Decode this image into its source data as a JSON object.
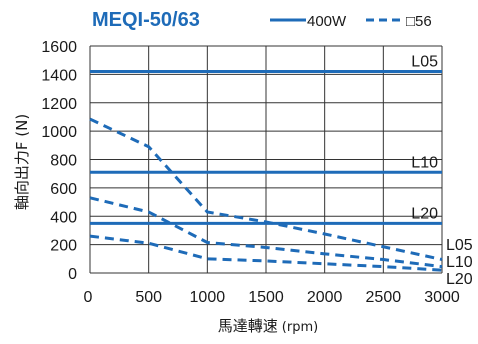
{
  "chart_data": {
    "type": "line",
    "title": "MEQI-50/63",
    "xlabel": "馬達轉速",
    "xlabel_unit": "(rpm)",
    "ylabel": "軸向出力F (N)",
    "xlim": [
      0,
      3000
    ],
    "ylim": [
      0,
      1600
    ],
    "xticks": [
      "0",
      "500",
      "1000",
      "1500",
      "2000",
      "2500",
      "3000"
    ],
    "yticks": [
      "0",
      "200",
      "400",
      "600",
      "800",
      "1000",
      "1200",
      "1400",
      "1600"
    ],
    "grid": true,
    "legend": {
      "position": "top-right",
      "entries": [
        {
          "label": "400W",
          "style": "solid"
        },
        {
          "label": "□56",
          "style": "dashed"
        }
      ]
    },
    "colors": {
      "series": "#1e6bb8",
      "grid": "#333333"
    },
    "series": [
      {
        "style": "solid",
        "right_label": "L05",
        "points": [
          [
            0,
            1420
          ],
          [
            3000,
            1420
          ]
        ]
      },
      {
        "style": "solid",
        "right_label": "L10",
        "points": [
          [
            0,
            710
          ],
          [
            3000,
            710
          ]
        ]
      },
      {
        "style": "solid",
        "right_label": "L20",
        "points": [
          [
            0,
            350
          ],
          [
            3000,
            350
          ]
        ]
      },
      {
        "style": "dashed",
        "right_label": "L05",
        "points": [
          [
            0,
            1085
          ],
          [
            500,
            890
          ],
          [
            1000,
            430
          ],
          [
            1500,
            360
          ],
          [
            2000,
            275
          ],
          [
            2500,
            185
          ],
          [
            3000,
            95
          ]
        ]
      },
      {
        "style": "dashed",
        "right_label": "L10",
        "points": [
          [
            0,
            530
          ],
          [
            500,
            430
          ],
          [
            1000,
            215
          ],
          [
            1500,
            180
          ],
          [
            2000,
            135
          ],
          [
            2500,
            95
          ],
          [
            3000,
            45
          ]
        ]
      },
      {
        "style": "dashed",
        "right_label": "L20",
        "points": [
          [
            0,
            260
          ],
          [
            500,
            210
          ],
          [
            1000,
            100
          ],
          [
            1500,
            85
          ],
          [
            2000,
            65
          ],
          [
            2500,
            45
          ],
          [
            3000,
            20
          ]
        ]
      }
    ]
  }
}
